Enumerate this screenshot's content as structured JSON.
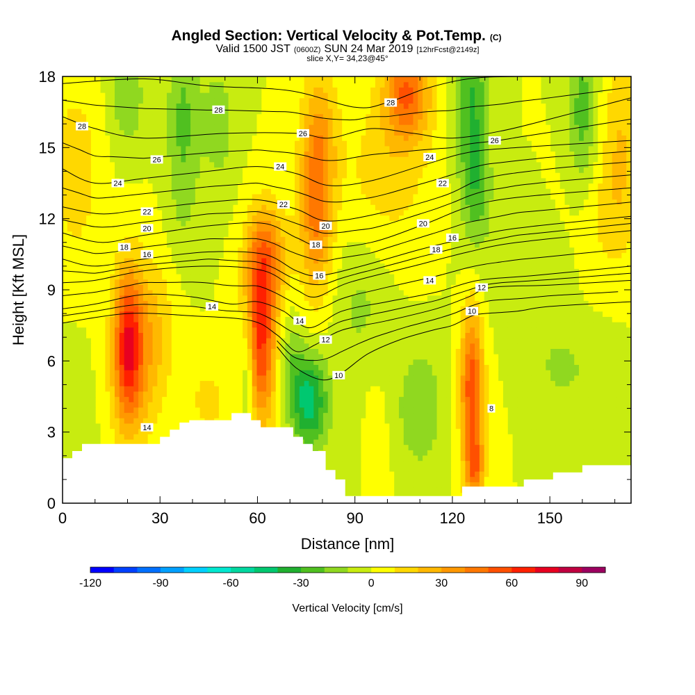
{
  "chart_data": {
    "type": "heatmap",
    "title": "Angled Section: Vertical Velocity & Pot.Temp.",
    "title_unit": "(C)",
    "subtitle_parts": [
      "Valid 1500 JST",
      "(0600Z)",
      "SUN 24 Mar 2019",
      "[12hrFcst@2149z]"
    ],
    "subtitle2": "slice X,Y= 34,23@45°",
    "xlabel": "Distance [nm]",
    "ylabel": "Height [Kft MSL]",
    "xlim": [
      0,
      175
    ],
    "ylim": [
      0,
      18
    ],
    "x_ticks": [
      0,
      30,
      60,
      90,
      120,
      150
    ],
    "y_ticks": [
      0,
      3,
      6,
      9,
      12,
      15,
      18
    ],
    "x_minor_step": 10,
    "y_minor_step": 1,
    "colorbar": {
      "label": "Vertical Velocity [cm/s]",
      "min": -120,
      "max": 100,
      "step": 10,
      "tick_values": [
        -120,
        -90,
        -60,
        -30,
        0,
        30,
        60,
        90
      ],
      "tick_labels": [
        "-120",
        "-90",
        "-60",
        "-30",
        "0",
        "30",
        "60",
        "90"
      ],
      "colors": [
        "#0000ff",
        "#0040ff",
        "#0070ff",
        "#00a0ff",
        "#00d0ff",
        "#00e8d0",
        "#00d8a0",
        "#00c870",
        "#20b030",
        "#50c020",
        "#90d820",
        "#c8ec10",
        "#ffff00",
        "#ffd800",
        "#ffb800",
        "#ff9800",
        "#ff7800",
        "#ff5000",
        "#ff2000",
        "#e80020",
        "#c00040",
        "#9c0060"
      ]
    },
    "terrain": {
      "x": [
        0,
        3,
        3,
        6,
        6,
        8,
        8,
        30,
        30,
        33,
        33,
        36,
        36,
        39,
        39,
        52,
        52,
        58,
        58,
        61,
        61,
        64,
        64,
        71,
        71,
        74,
        74,
        77,
        77,
        81,
        81,
        84,
        84,
        87,
        87,
        123,
        123,
        128,
        128,
        142,
        142,
        151,
        151,
        160,
        160,
        175
      ],
      "y": [
        1.9,
        1.9,
        2.2,
        2.2,
        2.5,
        2.5,
        2.5,
        2.5,
        2.8,
        2.8,
        3.1,
        3.1,
        3.4,
        3.4,
        3.5,
        3.5,
        3.8,
        3.8,
        3.5,
        3.5,
        3.2,
        3.2,
        3.2,
        3.2,
        2.8,
        2.8,
        2.5,
        2.5,
        2.2,
        2.2,
        1.4,
        1.4,
        1.0,
        1.0,
        0.3,
        0.3,
        0.7,
        0.7,
        0.7,
        0.7,
        1.0,
        1.0,
        1.3,
        1.3,
        1.6,
        1.6
      ]
    },
    "vertical_velocity_features": [
      {
        "x": 20,
        "y": 6.8,
        "sx": 3,
        "sy": 2.2,
        "value": 55
      },
      {
        "x": 26,
        "y": 7.3,
        "sx": 6,
        "sy": 2.2,
        "value": 25
      },
      {
        "x": 22,
        "y": 4.5,
        "sx": 5,
        "sy": 1.8,
        "value": 15
      },
      {
        "x": 61,
        "y": 7,
        "sx": 3.5,
        "sy": 2.6,
        "value": 62
      },
      {
        "x": 63,
        "y": 10.5,
        "sx": 4.5,
        "sy": 1.5,
        "value": 35
      },
      {
        "x": 57,
        "y": 5.5,
        "sx": 1.5,
        "sy": 1.8,
        "value": -25
      },
      {
        "x": 76,
        "y": 4.3,
        "sx": 4,
        "sy": 1.4,
        "value": -45
      },
      {
        "x": 70,
        "y": 6,
        "sx": 3,
        "sy": 1.5,
        "value": -15
      },
      {
        "x": 78,
        "y": 12,
        "sx": 3.5,
        "sy": 2.5,
        "value": 38
      },
      {
        "x": 79,
        "y": 15.5,
        "sx": 4,
        "sy": 2.2,
        "value": 25
      },
      {
        "x": 106,
        "y": 17.3,
        "sx": 5,
        "sy": 1.4,
        "value": 48
      },
      {
        "x": 100,
        "y": 14,
        "sx": 10,
        "sy": 2.5,
        "value": 15
      },
      {
        "x": 126,
        "y": 4.8,
        "sx": 2.5,
        "sy": 2.4,
        "value": 58
      },
      {
        "x": 127,
        "y": 1.5,
        "sx": 2,
        "sy": 1,
        "value": 35
      },
      {
        "x": 126,
        "y": 16.5,
        "sx": 3.5,
        "sy": 3,
        "value": -32
      },
      {
        "x": 128,
        "y": 13,
        "sx": 3,
        "sy": 1.5,
        "value": -15
      },
      {
        "x": 110,
        "y": 4,
        "sx": 5,
        "sy": 1.8,
        "value": -20
      },
      {
        "x": 153,
        "y": 5.8,
        "sx": 4,
        "sy": 0.8,
        "value": -15
      },
      {
        "x": 160,
        "y": 16.5,
        "sx": 3,
        "sy": 2.5,
        "value": -25
      },
      {
        "x": 37,
        "y": 16,
        "sx": 3.5,
        "sy": 3.5,
        "value": -22
      },
      {
        "x": 20,
        "y": 17.2,
        "sx": 3.5,
        "sy": 1.5,
        "value": -20
      },
      {
        "x": 48,
        "y": 16,
        "sx": 4,
        "sy": 2,
        "value": -15
      },
      {
        "x": 4,
        "y": 14,
        "sx": 5,
        "sy": 2.5,
        "value": 18
      },
      {
        "x": 172,
        "y": 15,
        "sx": 4,
        "sy": 3,
        "value": 20
      },
      {
        "x": 165,
        "y": 12,
        "sx": 6,
        "sy": 2,
        "value": 10
      },
      {
        "x": 92,
        "y": 8.5,
        "sx": 6,
        "sy": 2,
        "value": -12
      },
      {
        "x": 143,
        "y": 9.5,
        "sx": 10,
        "sy": 1.5,
        "value": -8
      },
      {
        "x": 45,
        "y": 4.3,
        "sx": 4,
        "sy": 1,
        "value": 15
      },
      {
        "x": 166,
        "y": 5,
        "sx": 6,
        "sy": 1.5,
        "value": -10
      },
      {
        "x": 96,
        "y": 2,
        "sx": 3,
        "sy": 2,
        "value": 8
      },
      {
        "x": 3,
        "y": 3,
        "sx": 4,
        "sy": 2,
        "value": -10
      },
      {
        "x": 88,
        "y": 3,
        "sx": 3,
        "sy": 2,
        "value": -8
      }
    ],
    "potential_temperature": {
      "levels": [
        8,
        10,
        12,
        14,
        16,
        18,
        20,
        22,
        24,
        26,
        28
      ],
      "curves": [
        {
          "value": 28,
          "x": [
            0,
            25,
            45,
            70,
            90,
            100,
            112,
            125,
            140,
            175
          ],
          "y": [
            17.7,
            17.9,
            17.6,
            17.4,
            16.7,
            16.9,
            17.5,
            17.9,
            18.0,
            18.0
          ]
        },
        {
          "value": 26,
          "x": [
            0,
            10,
            25,
            50,
            72,
            82,
            95,
            108,
            120,
            135,
            150,
            175
          ],
          "y": [
            16.3,
            15.8,
            15.4,
            15.6,
            15.6,
            15.4,
            15.8,
            15.6,
            15.4,
            15.7,
            16.2,
            17.1
          ]
        },
        {
          "value": 24,
          "x": [
            0,
            10,
            25,
            45,
            60,
            72,
            82,
            95,
            112,
            125,
            140,
            175
          ],
          "y": [
            14.1,
            13.5,
            13.7,
            14.0,
            14.2,
            13.9,
            13.4,
            13.6,
            14.3,
            14.8,
            15.0,
            15.3
          ]
        },
        {
          "value": 22,
          "x": [
            0,
            12,
            25,
            45,
            60,
            72,
            82,
            100,
            118,
            130,
            150,
            175
          ],
          "y": [
            12.5,
            12.2,
            12.4,
            12.7,
            12.8,
            12.4,
            11.9,
            12.3,
            13.0,
            13.7,
            14.1,
            14.4
          ]
        },
        {
          "value": 20,
          "x": [
            0,
            12,
            25,
            45,
            62,
            72,
            80,
            95,
            112,
            125,
            140,
            175
          ],
          "y": [
            11.4,
            11.0,
            11.3,
            11.7,
            11.8,
            11.2,
            10.8,
            11.0,
            11.8,
            12.5,
            12.9,
            13.3
          ]
        },
        {
          "value": 18,
          "x": [
            0,
            10,
            25,
            45,
            62,
            72,
            79,
            92,
            110,
            125,
            140,
            175
          ],
          "y": [
            10.3,
            10.0,
            10.3,
            10.6,
            10.5,
            9.8,
            9.6,
            10.0,
            10.7,
            11.2,
            11.6,
            12.1
          ]
        },
        {
          "value": 16,
          "x": [
            0,
            10,
            25,
            45,
            62,
            72,
            78,
            88,
            108,
            125,
            140,
            175
          ],
          "y": [
            9.3,
            9.4,
            9.8,
            10.0,
            9.8,
            9.0,
            8.7,
            9.3,
            10.0,
            10.6,
            11.0,
            11.5
          ]
        },
        {
          "value": 14,
          "x": [
            0,
            10,
            25,
            40,
            52,
            60,
            68,
            76,
            86,
            100,
            115,
            128,
            145,
            175
          ],
          "y": [
            8.2,
            8.4,
            8.8,
            8.7,
            8.4,
            8.5,
            8.1,
            7.4,
            8.1,
            8.5,
            8.9,
            9.4,
            9.6,
            10.0
          ]
        },
        {
          "value": 12,
          "x": [
            0,
            20,
            40,
            58,
            66,
            72,
            78,
            86,
            100,
            115,
            125,
            132,
            150,
            175
          ],
          "y": [
            7.6,
            8.0,
            7.9,
            7.7,
            7.1,
            6.4,
            6.7,
            7.3,
            7.7,
            8.2,
            8.7,
            9.1,
            9.2,
            9.4
          ]
        },
        {
          "value": 10,
          "x": [
            66,
            72,
            80,
            86,
            94,
            104,
            114,
            120,
            126,
            130,
            140,
            150,
            175
          ],
          "y": [
            6.6,
            5.7,
            5.2,
            5.5,
            6.3,
            6.9,
            7.3,
            7.5,
            7.9,
            8.0,
            8.1,
            8.3,
            8.5
          ]
        }
      ],
      "labels": [
        {
          "value": "28",
          "x": 6,
          "y": 15.9
        },
        {
          "value": "28",
          "x": 48,
          "y": 16.6
        },
        {
          "value": "28",
          "x": 101,
          "y": 16.9
        },
        {
          "value": "26",
          "x": 29,
          "y": 14.5
        },
        {
          "value": "26",
          "x": 74,
          "y": 15.6
        },
        {
          "value": "26",
          "x": 133,
          "y": 15.3
        },
        {
          "value": "24",
          "x": 17,
          "y": 13.5
        },
        {
          "value": "24",
          "x": 67,
          "y": 14.2
        },
        {
          "value": "24",
          "x": 113,
          "y": 14.6
        },
        {
          "value": "22",
          "x": 26,
          "y": 12.3
        },
        {
          "value": "22",
          "x": 68,
          "y": 12.6
        },
        {
          "value": "22",
          "x": 117,
          "y": 13.5
        },
        {
          "value": "20",
          "x": 26,
          "y": 11.6
        },
        {
          "value": "20",
          "x": 81,
          "y": 11.7
        },
        {
          "value": "20",
          "x": 111,
          "y": 11.8
        },
        {
          "value": "18",
          "x": 19,
          "y": 10.8
        },
        {
          "value": "18",
          "x": 78,
          "y": 10.9
        },
        {
          "value": "18",
          "x": 115,
          "y": 10.7
        },
        {
          "value": "16",
          "x": 26,
          "y": 10.5
        },
        {
          "value": "16",
          "x": 79,
          "y": 9.6
        },
        {
          "value": "16",
          "x": 120,
          "y": 11.2
        },
        {
          "value": "14",
          "x": 46,
          "y": 8.3
        },
        {
          "value": "14",
          "x": 73,
          "y": 7.7
        },
        {
          "value": "14",
          "x": 113,
          "y": 9.4
        },
        {
          "value": "14",
          "x": 26,
          "y": 3.2
        },
        {
          "value": "12",
          "x": 81,
          "y": 6.9
        },
        {
          "value": "12",
          "x": 129,
          "y": 9.1
        },
        {
          "value": "10",
          "x": 85,
          "y": 5.4
        },
        {
          "value": "10",
          "x": 126,
          "y": 8.1
        },
        {
          "value": "8",
          "x": 132,
          "y": 4.0
        }
      ]
    }
  }
}
